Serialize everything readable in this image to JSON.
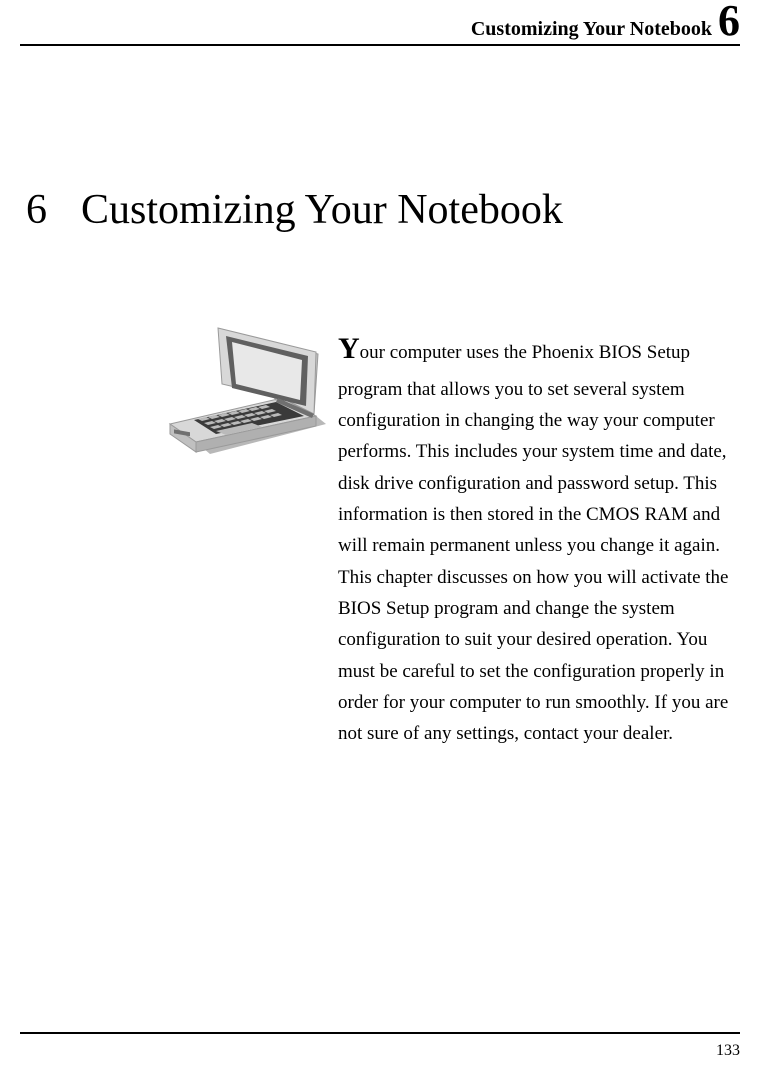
{
  "header": {
    "running_title": "Customizing Your Notebook",
    "chapter_number": "6"
  },
  "chapter": {
    "number": "6",
    "title": "Customizing Your Notebook"
  },
  "intro": {
    "drop_cap": "Y",
    "text_rest": "our computer uses the Phoenix BIOS Setup program that allows you to set several system configuration in changing the way your computer performs. This includes your system time and date, disk drive configuration and password setup. This information is then stored in the CMOS RAM and will remain permanent unless you change it again. This chapter discusses on how you will activate the BIOS Setup program and change the system configuration to suit your desired operation. You must be careful to set the configuration properly in order for your computer to run smoothly. If you are not sure of any settings, contact your dealer."
  },
  "laptop_svg": {
    "width": 164,
    "height": 142,
    "body_color": "#d8d8d8",
    "body_shadow": "#b8b8b8",
    "body_edge": "#9a9a9a",
    "screen_outer": "#c4c4c4",
    "screen_bezel": "#606060",
    "screen_panel": "#e8e8e8",
    "key_dark": "#3a3a3a",
    "key_light": "#bababa",
    "hinge": "#707070"
  },
  "footer": {
    "page_number": "133"
  },
  "colors": {
    "text": "#000000",
    "background": "#ffffff",
    "rule": "#000000"
  },
  "typography": {
    "body_font": "Garamond, serif",
    "heading_size_pt": 42,
    "body_size_pt": 19,
    "header_size_pt": 20,
    "header_chapter_num_pt": 44,
    "page_num_pt": 16,
    "drop_cap_pt": 30
  }
}
